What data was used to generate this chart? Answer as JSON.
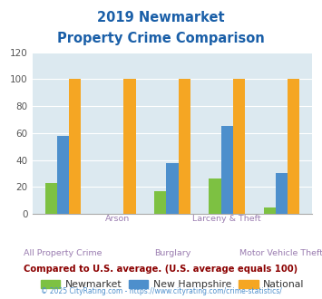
{
  "title_line1": "2019 Newmarket",
  "title_line2": "Property Crime Comparison",
  "categories": [
    "All Property Crime",
    "Arson",
    "Burglary",
    "Larceny & Theft",
    "Motor Vehicle Theft"
  ],
  "newmarket": [
    23,
    0,
    17,
    26,
    5
  ],
  "new_hampshire": [
    58,
    0,
    38,
    65,
    30
  ],
  "national": [
    100,
    100,
    100,
    100,
    100
  ],
  "color_newmarket": "#7dc142",
  "color_nh": "#4d8fcc",
  "color_national": "#f5a623",
  "ylim": [
    0,
    120
  ],
  "yticks": [
    0,
    20,
    40,
    60,
    80,
    100,
    120
  ],
  "plot_bg": "#dce9f0",
  "title_color": "#1a5fa8",
  "xlabel_top_color": "#9a7cb0",
  "xlabel_bot_color": "#9a7cb0",
  "legend_text_color": "#333333",
  "subtitle": "Compared to U.S. average. (U.S. average equals 100)",
  "subtitle_color": "#8b0000",
  "footer": "© 2025 CityRating.com - https://www.cityrating.com/crime-statistics/",
  "footer_color": "#4d8fcc",
  "bar_width": 0.22,
  "top_labels": [
    "",
    "Arson",
    "",
    "Larceny & Theft",
    ""
  ],
  "bottom_labels": [
    "All Property Crime",
    "",
    "Burglary",
    "",
    "Motor Vehicle Theft"
  ]
}
